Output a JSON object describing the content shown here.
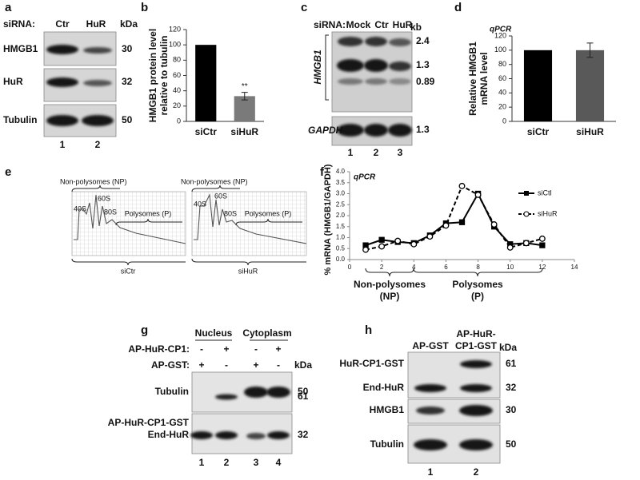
{
  "panels": {
    "a": {
      "label": "a",
      "header": "siRNA:",
      "lanes_header": [
        "Ctr",
        "HuR"
      ],
      "kda_label": "kDa",
      "rows": [
        {
          "name": "HMGB1",
          "kda": 30
        },
        {
          "name": "HuR",
          "kda": 32
        },
        {
          "name": "Tubulin",
          "kda": 50
        }
      ],
      "lanes": [
        "1",
        "2"
      ]
    },
    "b": {
      "label": "b"
    },
    "c": {
      "label": "c",
      "header": "siRNA:",
      "lanes_header": [
        "Mock",
        "Ctr",
        "HuR"
      ],
      "kb_label": "kb",
      "rows": [
        {
          "name": "HMGB1",
          "sizes": [
            2.4,
            1.3,
            0.89
          ]
        },
        {
          "name": "GAPDH",
          "sizes": [
            1.3
          ]
        }
      ],
      "lanes": [
        "1",
        "2",
        "3"
      ]
    },
    "d": {
      "label": "d"
    },
    "e": {
      "label": "e",
      "profiles": [
        {
          "np": "Non-polysomes (NP)",
          "peaks": [
            "40S",
            "60S",
            "80S"
          ],
          "p": "Polysomes (P)",
          "name": "siCtr"
        },
        {
          "np": "Non-polysomes (NP)",
          "peaks": [
            "40S",
            "60S",
            "80S"
          ],
          "p": "Polysomes (P)",
          "name": "siHuR"
        }
      ]
    },
    "f": {
      "label": "f"
    },
    "g": {
      "label": "g",
      "groups": [
        "Nucleus",
        "Cytoplasm"
      ],
      "kda_label": "kDa",
      "conditions": [
        {
          "name": "AP-HuR-CP1:",
          "signs": [
            "-",
            "+",
            "-",
            "+"
          ]
        },
        {
          "name": "AP-GST:",
          "signs": [
            "+",
            "-",
            "+",
            "-"
          ]
        }
      ],
      "rows": [
        {
          "name": "Tubulin",
          "kda": 50
        },
        {
          "name": "AP-HuR-CP1-GST",
          "kda": 61
        },
        {
          "name": "End-HuR",
          "kda": 32
        }
      ],
      "lanes": [
        "1",
        "2",
        "3",
        "4"
      ]
    },
    "h": {
      "label": "h",
      "lanes_header": [
        "AP-GST",
        "AP-HuR-",
        "CP1-GST"
      ],
      "kda_label": "kDa",
      "rows": [
        {
          "name": "HuR-CP1-GST",
          "kda": 61
        },
        {
          "name": "End-HuR",
          "kda": 32
        },
        {
          "name": "HMGB1",
          "kda": 30
        },
        {
          "name": "Tubulin",
          "kda": 50
        }
      ],
      "lanes": [
        "1",
        "2"
      ]
    }
  },
  "chart_data": [
    {
      "type": "bar",
      "ylabel": [
        "HMGB1 protein level",
        "relative to tubulin"
      ],
      "categories": [
        "siCtr",
        "siHuR"
      ],
      "values": [
        100,
        33
      ],
      "errors": [
        null,
        5
      ],
      "colors": [
        "#000000",
        "#7a7a7a"
      ],
      "annotation": "**",
      "ylim": [
        0,
        120
      ],
      "yticks": [
        0,
        20,
        40,
        60,
        80,
        100,
        120
      ]
    },
    {
      "type": "bar",
      "title": "qPCR",
      "ylabel": [
        "Relative HMGB1",
        "mRNA level"
      ],
      "categories": [
        "siCtr",
        "siHuR"
      ],
      "values": [
        100,
        100
      ],
      "errors": [
        null,
        10
      ],
      "colors": [
        "#000000",
        "#595959"
      ],
      "ylim": [
        0,
        120
      ],
      "yticks": [
        0,
        20,
        40,
        60,
        80,
        100,
        120
      ]
    },
    {
      "type": "line",
      "title": "qPCR",
      "ylabel": "% mRNA (HMGB1/GAPDH)",
      "x": [
        1,
        2,
        3,
        4,
        5,
        6,
        7,
        8,
        9,
        10,
        11,
        12
      ],
      "series": [
        {
          "name": "siCtl",
          "color": "#000000",
          "style": "solid",
          "marker": "square",
          "values": [
            0.65,
            0.9,
            0.8,
            0.75,
            1.1,
            1.65,
            1.7,
            3.0,
            1.5,
            0.7,
            0.75,
            0.65
          ]
        },
        {
          "name": "siHuR",
          "color": "#000000",
          "style": "dashed",
          "marker": "circle",
          "values": [
            0.45,
            0.6,
            0.85,
            0.7,
            1.05,
            1.55,
            3.35,
            2.95,
            1.6,
            0.55,
            0.75,
            0.95
          ]
        }
      ],
      "xlim": [
        0,
        14
      ],
      "xticks": [
        0,
        2,
        4,
        6,
        8,
        10,
        12,
        14
      ],
      "ylim": [
        0,
        4
      ],
      "yticks": [
        {
          "value": 0,
          "label": "0.0"
        },
        0.5,
        {
          "value": 1,
          "label": "1.0"
        },
        1.5,
        {
          "value": 2,
          "label": "2.0"
        },
        2.5,
        {
          "value": 3,
          "label": "3.0"
        },
        3.5,
        {
          "value": 4,
          "label": "4.0"
        }
      ],
      "annotations": [
        "Non-polysomes",
        "(NP)",
        "Polysomes",
        "(P)"
      ]
    }
  ]
}
